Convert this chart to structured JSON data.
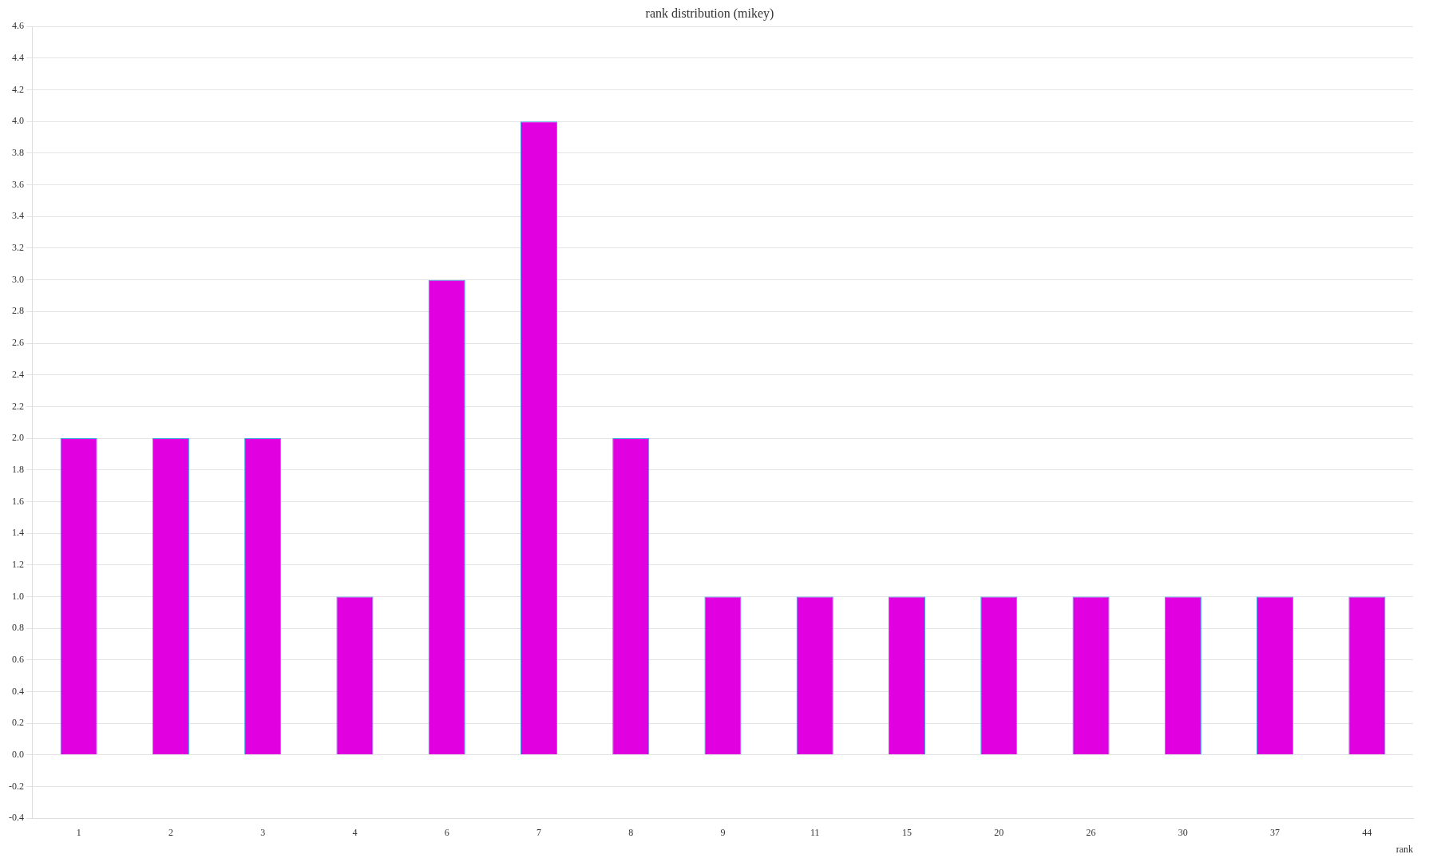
{
  "chart_data": {
    "type": "bar",
    "title": "rank distribution (mikey)",
    "xlabel": "rank",
    "categories": [
      "1",
      "2",
      "3",
      "4",
      "6",
      "7",
      "8",
      "9",
      "11",
      "15",
      "20",
      "26",
      "30",
      "37",
      "44"
    ],
    "values": [
      2,
      2,
      2,
      1,
      3,
      4,
      2,
      1,
      1,
      1,
      1,
      1,
      1,
      1,
      1
    ],
    "color": "#e000e0",
    "ylim": [
      -0.4,
      4.6
    ],
    "yticks": [
      {
        "value": -0.4,
        "label": "-0.4"
      },
      {
        "value": -0.2,
        "label": "-0.2"
      },
      {
        "value": 0,
        "label": "0.0"
      },
      {
        "value": 0.2,
        "label": "0.2"
      },
      {
        "value": 0.4,
        "label": "0.4"
      },
      {
        "value": 0.6,
        "label": "0.6"
      },
      {
        "value": 0.8,
        "label": "0.8"
      },
      {
        "value": 1,
        "label": "1.0"
      },
      {
        "value": 1.2,
        "label": "1.2"
      },
      {
        "value": 1.4,
        "label": "1.4"
      },
      {
        "value": 1.6,
        "label": "1.6"
      },
      {
        "value": 1.8,
        "label": "1.8"
      },
      {
        "value": 2,
        "label": "2.0"
      },
      {
        "value": 2.2,
        "label": "2.2"
      },
      {
        "value": 2.4,
        "label": "2.4"
      },
      {
        "value": 2.6,
        "label": "2.6"
      },
      {
        "value": 2.8,
        "label": "2.8"
      },
      {
        "value": 3,
        "label": "3.0"
      },
      {
        "value": 3.2,
        "label": "3.2"
      },
      {
        "value": 3.4,
        "label": "3.4"
      },
      {
        "value": 3.6,
        "label": "3.6"
      },
      {
        "value": 3.8,
        "label": "3.8"
      },
      {
        "value": 4,
        "label": "4.0"
      },
      {
        "value": 4.2,
        "label": "4.2"
      },
      {
        "value": 4.4,
        "label": "4.4"
      },
      {
        "value": 4.6,
        "label": "4.6"
      }
    ],
    "grid": "y",
    "legend": false
  }
}
